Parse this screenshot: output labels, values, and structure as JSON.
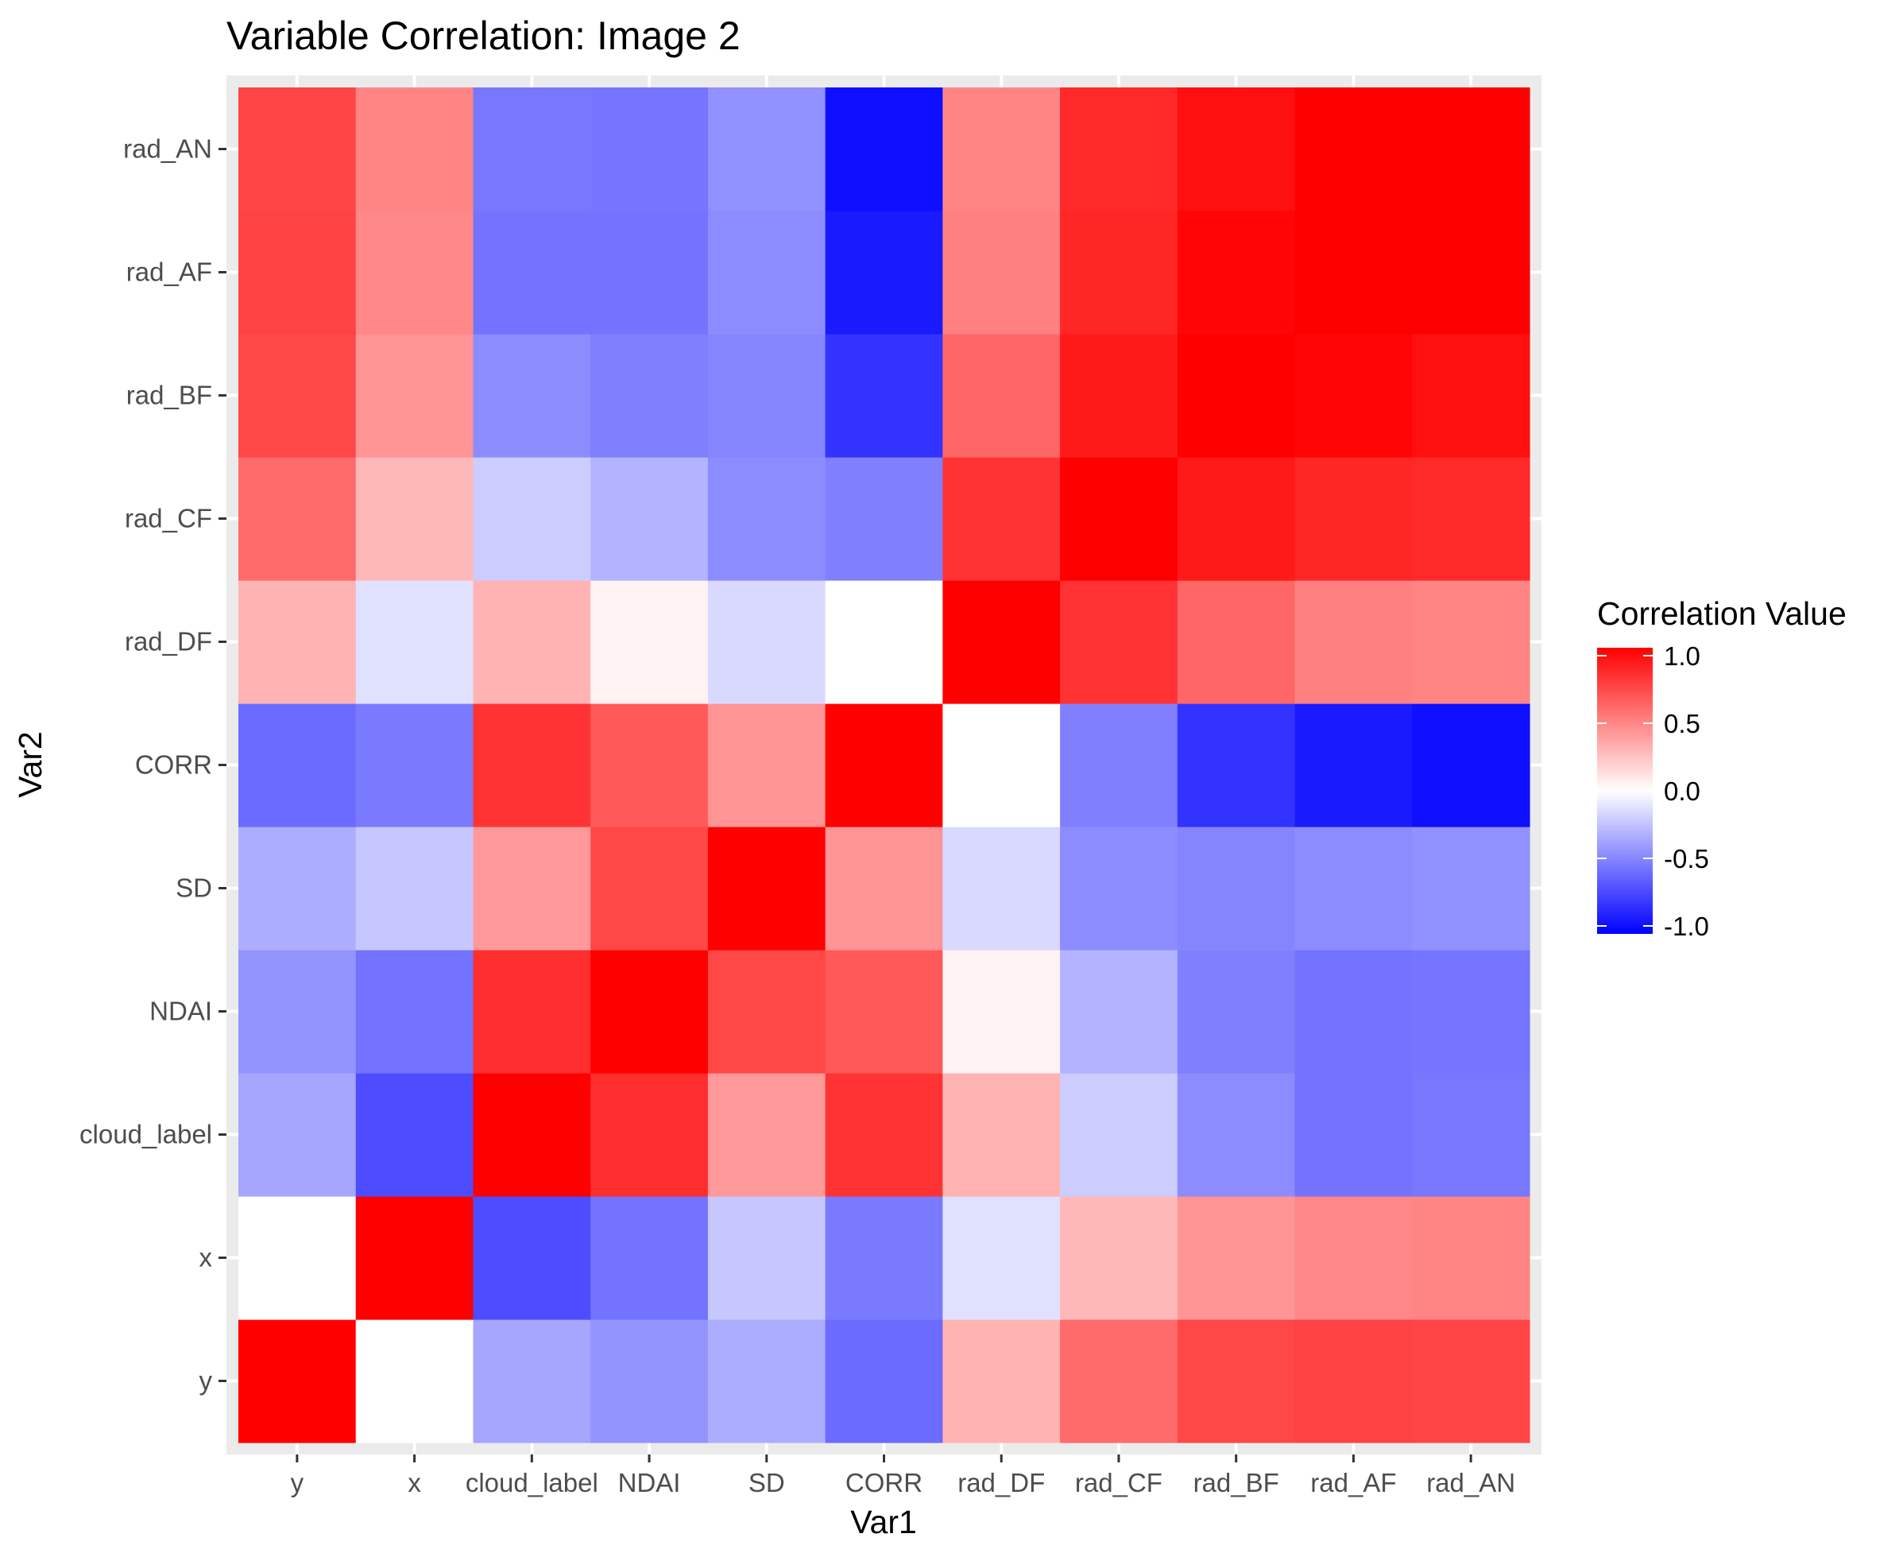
{
  "chart_data": {
    "type": "heatmap",
    "title": "Variable Correlation: Image 2",
    "xlabel": "Var1",
    "ylabel": "Var2",
    "x": [
      "y",
      "x",
      "cloud_label",
      "NDAI",
      "SD",
      "CORR",
      "rad_DF",
      "rad_CF",
      "rad_BF",
      "rad_AF",
      "rad_AN"
    ],
    "y": [
      "y",
      "x",
      "cloud_label",
      "NDAI",
      "SD",
      "CORR",
      "rad_DF",
      "rad_CF",
      "rad_BF",
      "rad_AF",
      "rad_AN"
    ],
    "values": [
      [
        1.0,
        0.0,
        -0.35,
        -0.42,
        -0.32,
        -0.58,
        0.3,
        0.58,
        0.72,
        0.74,
        0.73
      ],
      [
        0.0,
        1.0,
        -0.7,
        -0.55,
        -0.22,
        -0.52,
        -0.12,
        0.28,
        0.42,
        0.47,
        0.48
      ],
      [
        -0.35,
        -0.7,
        1.0,
        0.82,
        0.4,
        0.8,
        0.3,
        -0.2,
        -0.45,
        -0.55,
        -0.53
      ],
      [
        -0.42,
        -0.55,
        0.82,
        1.0,
        0.72,
        0.65,
        0.05,
        -0.3,
        -0.5,
        -0.55,
        -0.54
      ],
      [
        -0.32,
        -0.22,
        0.4,
        0.72,
        1.0,
        0.42,
        -0.15,
        -0.45,
        -0.48,
        -0.45,
        -0.43
      ],
      [
        -0.58,
        -0.52,
        0.8,
        0.65,
        0.42,
        1.0,
        0.0,
        -0.5,
        -0.8,
        -0.9,
        -0.94
      ],
      [
        0.3,
        -0.12,
        0.3,
        0.05,
        -0.15,
        0.0,
        1.0,
        0.8,
        0.6,
        0.5,
        0.48
      ],
      [
        0.58,
        0.28,
        -0.2,
        -0.3,
        -0.45,
        -0.5,
        0.8,
        1.0,
        0.9,
        0.85,
        0.84
      ],
      [
        0.72,
        0.42,
        -0.45,
        -0.5,
        -0.48,
        -0.8,
        0.6,
        0.9,
        1.0,
        0.98,
        0.94
      ],
      [
        0.74,
        0.47,
        -0.55,
        -0.55,
        -0.45,
        -0.9,
        0.5,
        0.85,
        0.98,
        1.0,
        1.0
      ],
      [
        0.73,
        0.48,
        -0.53,
        -0.54,
        -0.43,
        -0.94,
        0.48,
        0.84,
        0.94,
        1.0,
        1.0
      ]
    ],
    "color_scale": {
      "low": "#0000ff",
      "mid": "#ffffff",
      "high": "#ff0000",
      "limits": [
        -1,
        1
      ]
    },
    "legend": {
      "title": "Correlation Value",
      "ticks": [
        1.0,
        0.5,
        0.0,
        -0.5,
        -1.0
      ],
      "tick_labels": [
        "1.0",
        "0.5",
        "0.0",
        "-0.5",
        "-1.0"
      ],
      "position": "right"
    },
    "panel_background": "#ebebeb",
    "grid": true
  }
}
